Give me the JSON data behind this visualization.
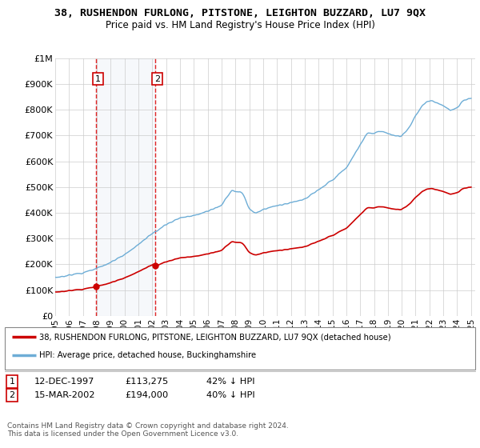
{
  "title": "38, RUSHENDON FURLONG, PITSTONE, LEIGHTON BUZZARD, LU7 9QX",
  "subtitle": "Price paid vs. HM Land Registry's House Price Index (HPI)",
  "sale1_date": "12-DEC-1997",
  "sale1_price": 113275,
  "sale1_label": "42% ↓ HPI",
  "sale1_year": 1997.95,
  "sale2_date": "15-MAR-2002",
  "sale2_price": 194000,
  "sale2_label": "40% ↓ HPI",
  "sale2_year": 2002.21,
  "hpi_color": "#6dadd6",
  "price_color": "#cc0000",
  "legend_label1": "38, RUSHENDON FURLONG, PITSTONE, LEIGHTON BUZZARD, LU7 9QX (detached house)",
  "legend_label2": "HPI: Average price, detached house, Buckinghamshire",
  "footer": "Contains HM Land Registry data © Crown copyright and database right 2024.\nThis data is licensed under the Open Government Licence v3.0.",
  "ylim": [
    0,
    1000000
  ],
  "yticks": [
    0,
    100000,
    200000,
    300000,
    400000,
    500000,
    600000,
    700000,
    800000,
    900000,
    1000000
  ],
  "ytick_labels": [
    "£0",
    "£100K",
    "£200K",
    "£300K",
    "£400K",
    "£500K",
    "£600K",
    "£700K",
    "£800K",
    "£900K",
    "£1M"
  ]
}
